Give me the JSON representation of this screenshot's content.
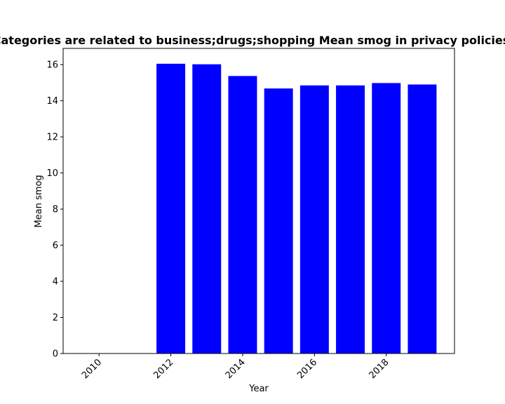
{
  "chart_data": {
    "type": "bar",
    "title": "Categories are related to business;drugs;shopping Mean smog in privacy policies",
    "xlabel": "Year",
    "ylabel": "Mean smog",
    "x": [
      2012,
      2013,
      2014,
      2015,
      2016,
      2017,
      2018,
      2019
    ],
    "values": [
      16.05,
      16.02,
      15.37,
      14.68,
      14.85,
      14.85,
      14.98,
      14.9
    ],
    "bar_color": "#0000ff",
    "xlim": [
      2009.0,
      2019.9
    ],
    "ylim": [
      0,
      16.9
    ],
    "xticks": [
      2010,
      2012,
      2014,
      2016,
      2018
    ],
    "yticks": [
      0,
      2,
      4,
      6,
      8,
      10,
      12,
      14,
      16
    ],
    "grid": false,
    "legend": "none"
  }
}
